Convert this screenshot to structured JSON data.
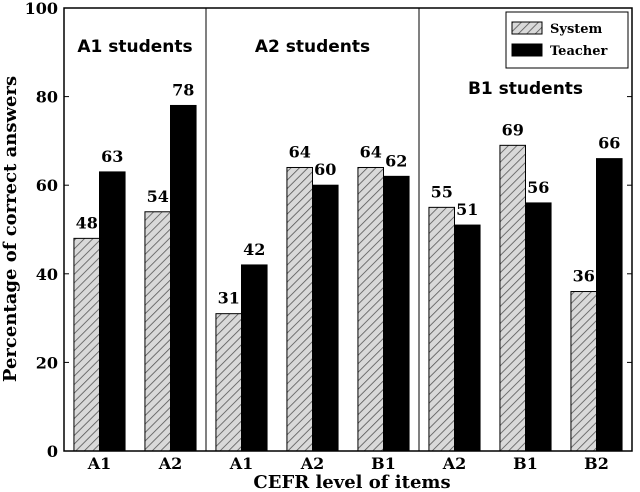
{
  "chart_data": {
    "type": "bar",
    "xlabel": "CEFR level of items",
    "ylabel": "Percentage of correct answers",
    "ylim": [
      0,
      100
    ],
    "yticks": [
      "0",
      "20",
      "40",
      "60",
      "80",
      "100"
    ],
    "legend": {
      "position": "top-right",
      "entries": [
        "System",
        "Teacher"
      ]
    },
    "series_styles": {
      "System": "hatched-gray",
      "Teacher": "solid-black"
    },
    "groups": [
      {
        "label": "A1 students",
        "categories": [
          "A1",
          "A2"
        ],
        "series": [
          {
            "name": "System",
            "values": [
              48,
              54
            ]
          },
          {
            "name": "Teacher",
            "values": [
              63,
              78
            ]
          }
        ]
      },
      {
        "label": "A2 students",
        "categories": [
          "A1",
          "A2",
          "B1"
        ],
        "series": [
          {
            "name": "System",
            "values": [
              31,
              64,
              64
            ]
          },
          {
            "name": "Teacher",
            "values": [
              42,
              60,
              62
            ]
          }
        ]
      },
      {
        "label": "B1 students",
        "categories": [
          "A2",
          "B1",
          "B2"
        ],
        "series": [
          {
            "name": "System",
            "values": [
              55,
              69,
              36
            ]
          },
          {
            "name": "Teacher",
            "values": [
              51,
              56,
              66
            ]
          }
        ]
      }
    ],
    "colors": {
      "system_fill": "#d9d9d9",
      "hatch": "#555555",
      "teacher_fill": "#000000"
    }
  }
}
